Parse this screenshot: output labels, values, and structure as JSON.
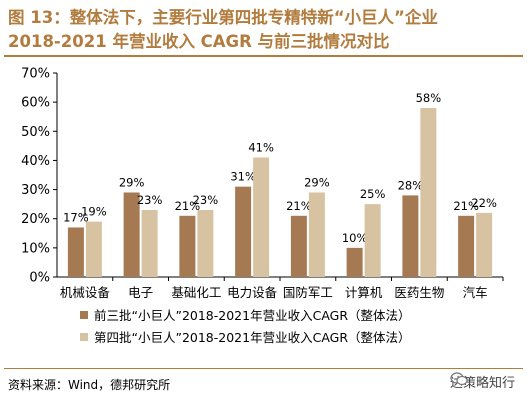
{
  "header": {
    "title_line1": "图 13：整体法下，主要行业第四批专精特新“小巨人”企业",
    "title_line2": "2018-2021 年营业收入 CAGR 与前三批情况对比"
  },
  "footer": {
    "source": "资料来源：Wind，德邦研究所",
    "watermark": "达策略知行"
  },
  "colors": {
    "series1": "#a57a53",
    "series2": "#d7c2a1",
    "accent": "#b27c3e"
  },
  "chart_data": {
    "type": "bar",
    "categories": [
      "机械设备",
      "电子",
      "基础化工",
      "电力设备",
      "国防军工",
      "计算机",
      "医药生物",
      "汽车"
    ],
    "series": [
      {
        "name": "前三批“小巨人”2018-2021年营业收入CAGR（整体法）",
        "values": [
          17,
          29,
          21,
          31,
          21,
          10,
          28,
          21
        ],
        "labels": [
          "17%",
          "29%",
          "21%",
          "31%",
          "21%",
          "10%",
          "28%",
          "21%"
        ]
      },
      {
        "name": "第四批“小巨人”2018-2021年营业收入CAGR（整体法）",
        "values": [
          19,
          23,
          23,
          41,
          29,
          25,
          58,
          22
        ],
        "labels": [
          "19%",
          "23%",
          "23%",
          "41%",
          "29%",
          "25%",
          "58%",
          "22%"
        ]
      }
    ],
    "yticks": [
      "0%",
      "10%",
      "20%",
      "30%",
      "40%",
      "50%",
      "60%",
      "70%"
    ],
    "ylim": [
      0,
      70
    ],
    "grid": false,
    "legend": "bottom"
  }
}
